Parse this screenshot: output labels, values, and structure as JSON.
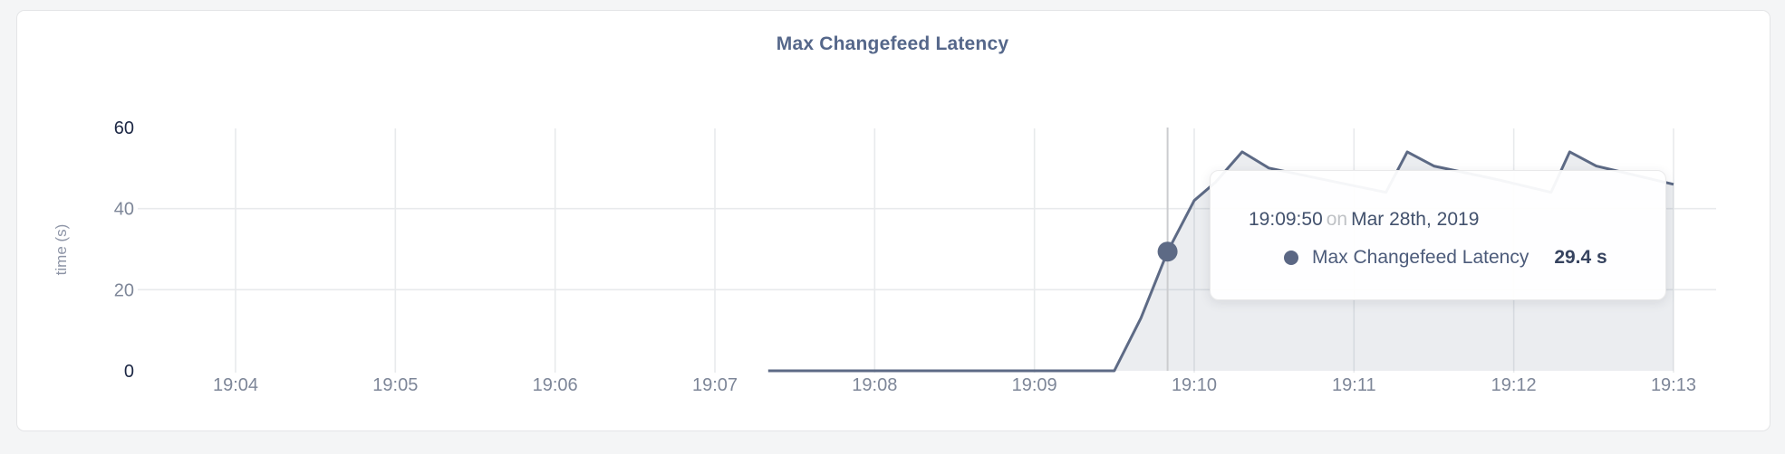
{
  "page": {
    "background": "#f4f5f6"
  },
  "card": {
    "background": "#ffffff",
    "border_color": "#e4e5e7"
  },
  "chart": {
    "title": "Max Changefeed Latency",
    "title_color": "#55678a"
  },
  "y_axis": {
    "label": "time (s)",
    "ticks": [
      "0",
      "20",
      "40",
      "60"
    ]
  },
  "x_axis": {
    "ticks": [
      "19:04",
      "19:05",
      "19:06",
      "19:07",
      "19:08",
      "19:09",
      "19:10",
      "19:11",
      "19:12",
      "19:13"
    ]
  },
  "tooltip": {
    "time": "19:09:50",
    "conjunction": "on",
    "date": "Mar 28th, 2019",
    "series_label": "Max Changefeed Latency",
    "value": "29.4 s",
    "bullet_color": "#5b6784"
  },
  "colors": {
    "line": "#5d6a85",
    "area_fill": "rgba(93,106,133,0.12)",
    "grid": "#e8eaec",
    "crosshair": "#cbcccf",
    "tick_text": "#7d8698",
    "tick_text_strong": "#1c2744",
    "title": "#55678a"
  },
  "chart_data": {
    "type": "area",
    "title": "Max Changefeed Latency",
    "xlabel": "",
    "ylabel": "time (s)",
    "ylim": [
      0,
      60
    ],
    "yticks": [
      0,
      20,
      40,
      60
    ],
    "x_ticks": [
      "19:04",
      "19:05",
      "19:06",
      "19:07",
      "19:08",
      "19:09",
      "19:10",
      "19:11",
      "19:12",
      "19:13"
    ],
    "grid": "vertical line per minute; horizontal lines at 20 and 40",
    "legend_position": "none (tooltip only)",
    "series": [
      {
        "name": "Max Changefeed Latency",
        "unit": "s",
        "points": [
          {
            "t": "19:07:20",
            "v": 0
          },
          {
            "t": "19:09:30",
            "v": 0
          },
          {
            "t": "19:09:40",
            "v": 13
          },
          {
            "t": "19:09:50",
            "v": 29.4
          },
          {
            "t": "19:10:00",
            "v": 42
          },
          {
            "t": "19:10:08",
            "v": 46.5
          },
          {
            "t": "19:10:18",
            "v": 54
          },
          {
            "t": "19:10:28",
            "v": 50
          },
          {
            "t": "19:10:50",
            "v": 47
          },
          {
            "t": "19:11:12",
            "v": 44
          },
          {
            "t": "19:11:20",
            "v": 54
          },
          {
            "t": "19:11:30",
            "v": 50.5
          },
          {
            "t": "19:11:55",
            "v": 47
          },
          {
            "t": "19:12:14",
            "v": 44
          },
          {
            "t": "19:12:21",
            "v": 54
          },
          {
            "t": "19:12:31",
            "v": 50.5
          },
          {
            "t": "19:13:00",
            "v": 46
          }
        ]
      }
    ],
    "hover": {
      "t": "19:09:50",
      "v": 29.4,
      "value_label": "29.4 s",
      "date": "Mar 28th, 2019"
    }
  }
}
